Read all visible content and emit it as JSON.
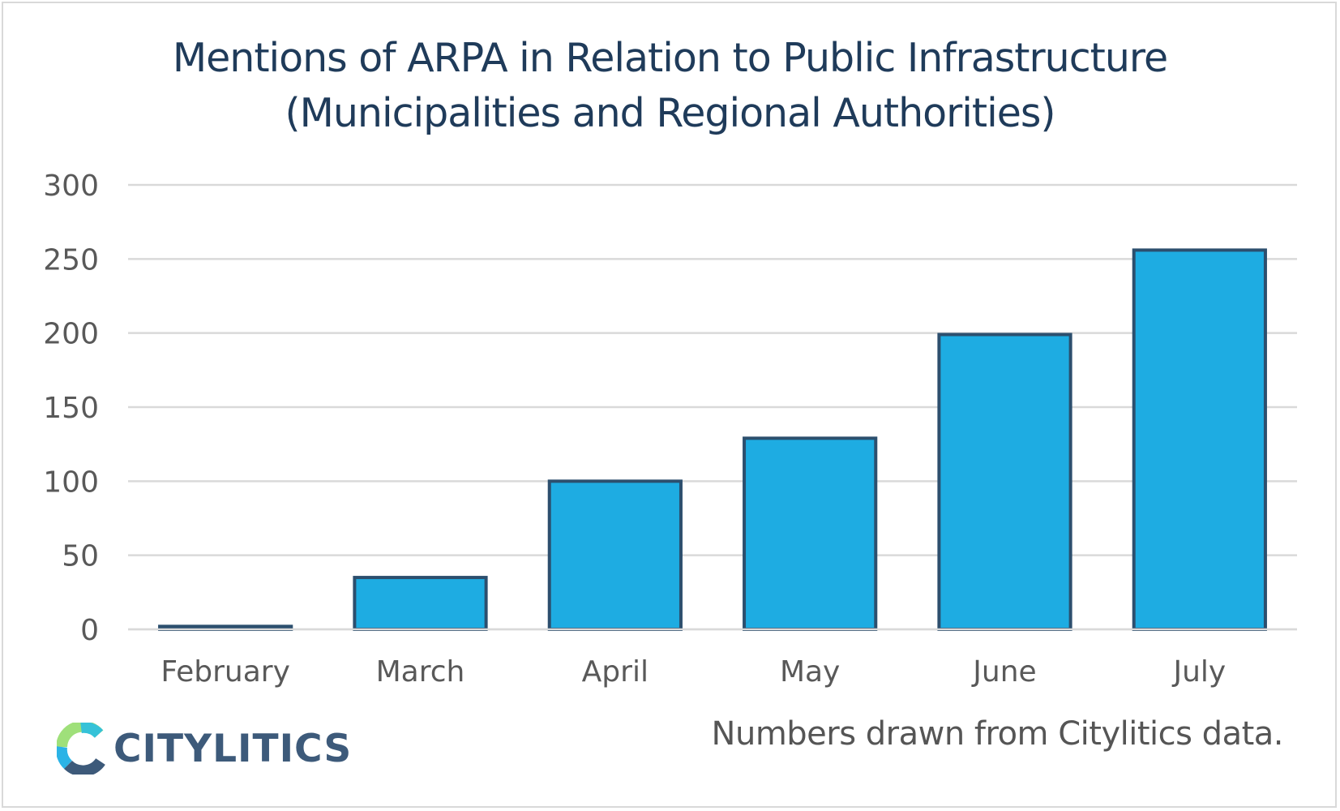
{
  "chart_data": {
    "type": "bar",
    "title": "Mentions of ARPA in Relation to Public Infrastructure",
    "subtitle": "(Municipalities and Regional Authorities)",
    "categories": [
      "February",
      "March",
      "April",
      "May",
      "June",
      "July"
    ],
    "values": [
      2,
      35,
      100,
      129,
      199,
      256
    ],
    "ylim": [
      0,
      300
    ],
    "yticks": [
      0,
      50,
      100,
      150,
      200,
      250,
      300
    ],
    "grid": true,
    "bar_fill": "#1eace2",
    "bar_stroke": "#2c4f6e"
  },
  "footer": {
    "source_note": "Numbers drawn from Citylitics data.",
    "logo_text": "CITYLITICS"
  },
  "colors": {
    "title": "#1f3b5a",
    "axis_text": "#595959",
    "gridline": "#d9d9d9"
  }
}
